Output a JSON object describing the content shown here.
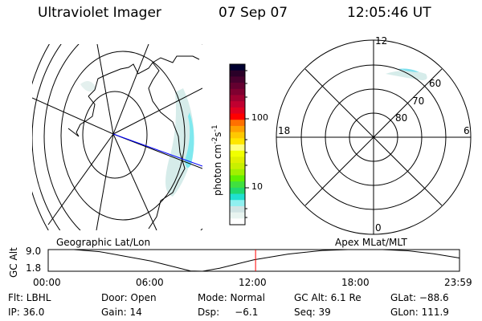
{
  "header": {
    "instrument": "Ultraviolet Imager",
    "date": "07 Sep 07",
    "time": "12:05:46 UT"
  },
  "colorbar": {
    "label": "photon cm",
    "label_sup1": "-2",
    "label_s": "s",
    "label_sup2": "-1",
    "ticks": [
      "100",
      "10"
    ],
    "colors": [
      "#000030",
      "#2a0028",
      "#48002e",
      "#640030",
      "#800030",
      "#a00030",
      "#c00030",
      "#e00020",
      "#ff0000",
      "#ff7000",
      "#ffa000",
      "#ffc800",
      "#ffe600",
      "#ffff80",
      "#f0ff00",
      "#e0f000",
      "#c8f000",
      "#a0f000",
      "#60f000",
      "#40e040",
      "#20d870",
      "#20e0d0",
      "#90f0f0",
      "#d0e4e4",
      "#e8f4f0",
      "#ffffff"
    ]
  },
  "geo_map": {
    "label": "Geographic Lat/Lon"
  },
  "polar_plot": {
    "label": "Apex MLat/MLT",
    "mlt_labels": [
      "12",
      "6",
      "0",
      "18"
    ],
    "lat_labels": [
      "60",
      "70",
      "80"
    ]
  },
  "timeline": {
    "ylabel": "GC Alt",
    "ymax_label": "9.0",
    "ymin_label": "1.8",
    "xticks": [
      "00:00",
      "06:00",
      "12:00",
      "18:00",
      "23:59"
    ],
    "current_time_hours": 12.1,
    "marker_color": "#ff0000",
    "curve": [
      [
        0,
        9.0
      ],
      [
        1.5,
        9.0
      ],
      [
        3,
        8.3
      ],
      [
        6,
        5.2
      ],
      [
        8.3,
        1.9
      ],
      [
        9.0,
        1.8
      ],
      [
        10,
        2.8
      ],
      [
        12,
        5.6
      ],
      [
        14,
        7.5
      ],
      [
        16,
        8.7
      ],
      [
        17.5,
        9.0
      ],
      [
        19.5,
        9.0
      ],
      [
        21,
        8.6
      ],
      [
        22.5,
        7.6
      ],
      [
        24,
        6.2
      ]
    ]
  },
  "info": {
    "row1": [
      "Flt: LBHL",
      "Door: Open",
      "Mode: Normal",
      "GC Alt: 6.1 Re",
      "GLat: −88.6"
    ],
    "row2": [
      "IP: 36.0",
      "Gain: 14",
      "Dsp:     −6.1",
      "Seq: 39",
      "GLon: 111.9"
    ]
  }
}
